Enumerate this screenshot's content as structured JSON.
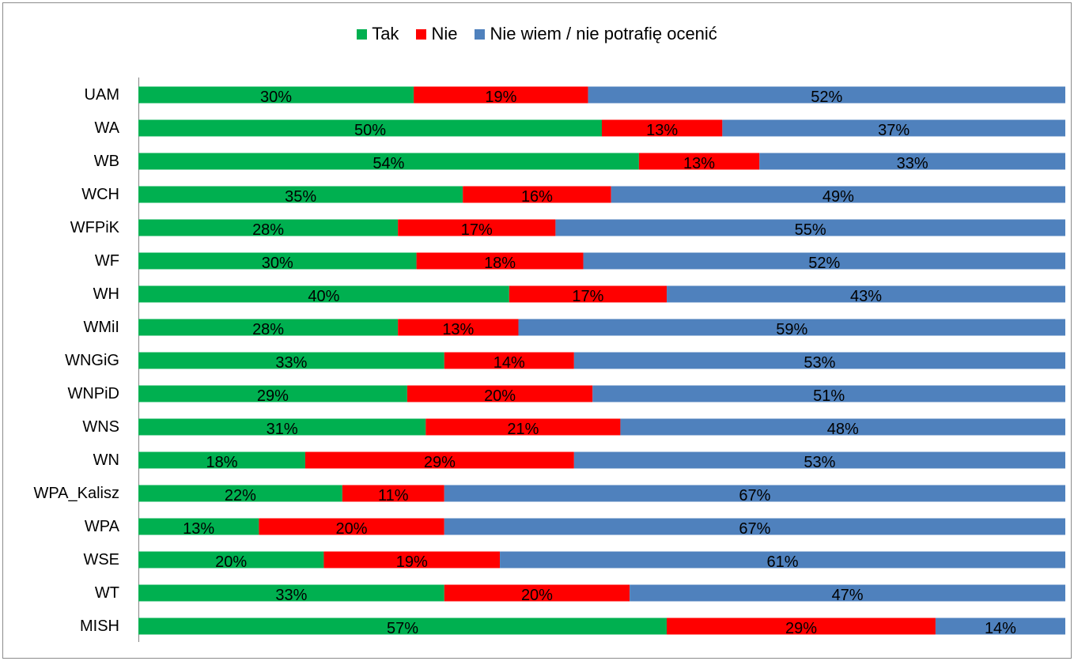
{
  "chart_data": {
    "type": "bar",
    "orientation": "horizontal",
    "stacked": true,
    "percent_stacked": true,
    "title": "",
    "xlabel": "",
    "ylabel": "",
    "legend_position": "top",
    "grid": false,
    "xlim": [
      0,
      100
    ],
    "categories": [
      "UAM",
      "WA",
      "WB",
      "WCH",
      "WFPiK",
      "WF",
      "WH",
      "WMiI",
      "WNGiG",
      "WNPiD",
      "WNS",
      "WN",
      "WPA_Kalisz",
      "WPA",
      "WSE",
      "WT",
      "MISH"
    ],
    "series": [
      {
        "name": "Tak",
        "color": "#00b050",
        "values": [
          30,
          50,
          54,
          35,
          28,
          30,
          40,
          28,
          33,
          29,
          31,
          18,
          22,
          13,
          20,
          33,
          57
        ],
        "labels": [
          "30%",
          "50%",
          "54%",
          "35%",
          "28%",
          "30%",
          "40%",
          "28%",
          "33%",
          "29%",
          "31%",
          "18%",
          "22%",
          "13%",
          "20%",
          "33%",
          "57%"
        ]
      },
      {
        "name": "Nie",
        "color": "#ff0000",
        "values": [
          19,
          13,
          13,
          16,
          17,
          18,
          17,
          13,
          14,
          20,
          21,
          29,
          11,
          20,
          19,
          20,
          29
        ],
        "labels": [
          "19%",
          "13%",
          "13%",
          "16%",
          "17%",
          "18%",
          "17%",
          "13%",
          "14%",
          "20%",
          "21%",
          "29%",
          "11%",
          "20%",
          "19%",
          "20%",
          "29%"
        ]
      },
      {
        "name": "Nie wiem / nie potrafię ocenić",
        "color": "#4f81bd",
        "values": [
          52,
          37,
          33,
          49,
          55,
          52,
          43,
          59,
          53,
          51,
          48,
          53,
          67,
          67,
          61,
          47,
          14
        ],
        "labels": [
          "52%",
          "37%",
          "33%",
          "49%",
          "55%",
          "52%",
          "43%",
          "59%",
          "53%",
          "51%",
          "48%",
          "53%",
          "67%",
          "67%",
          "61%",
          "47%",
          "14%"
        ]
      }
    ]
  }
}
